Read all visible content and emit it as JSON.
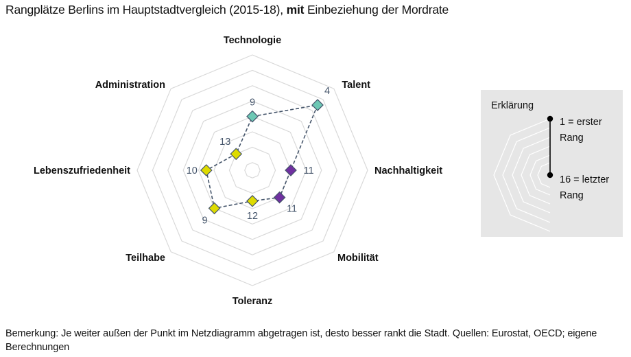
{
  "title": {
    "part1": "Rangplätze Berlins im Hauptstadtvergleich (2015-18), ",
    "bold": "mit",
    "part2": " Einbeziehung der Mordrate"
  },
  "note": "Bemerkung: Je weiter außen der Punkt im Netzdiagramm abgetragen ist, desto besser rankt die Stadt. Quellen: Eurostat, OECD; eigene Berechnungen",
  "colors": {
    "teal": "#6dc8b4",
    "purple": "#7030a0",
    "yellow": "#dedb00",
    "marker_stroke": "#44546a",
    "line": "#44546a",
    "grid": "#d9d9d9",
    "legend_bg": "#e6e6e6"
  },
  "legend": {
    "title": "Erklärung",
    "top_line1": "1 = erster",
    "top_line2": "Rang",
    "bottom_line1": "16 = letzter",
    "bottom_line2": "Rang"
  },
  "chart_data": {
    "type": "radar",
    "title": "Rangplätze Berlins im Hauptstadtvergleich (2015-18), mit Einbeziehung der Mordrate",
    "axis_range": {
      "center": 16,
      "outer": 1
    },
    "grid_ranks": [
      1,
      3,
      5,
      7,
      9,
      11,
      13,
      15
    ],
    "categories": [
      "Technologie",
      "Talent",
      "Nachhaltigkeit",
      "Mobilität",
      "Toleranz",
      "Teilhabe",
      "Lebenszufriedenheit",
      "Administration"
    ],
    "series": [
      {
        "name": "Berlin",
        "values": [
          9,
          4,
          11,
          11,
          12,
          9,
          10,
          13
        ],
        "value_labels": [
          "9",
          "4",
          "11",
          "11",
          "12",
          "9",
          "10",
          "13"
        ],
        "marker_colors": [
          "teal",
          "teal",
          "purple",
          "purple",
          "yellow",
          "yellow",
          "yellow",
          "yellow"
        ]
      }
    ],
    "legend_placement": "right"
  }
}
